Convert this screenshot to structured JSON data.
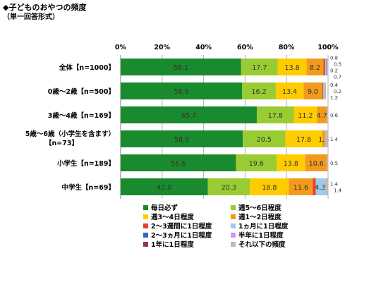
{
  "header": {
    "title": "◆子どものおやつの頻度",
    "subtitle": "（単一回答形式）"
  },
  "chart_data": {
    "type": "bar",
    "orientation": "horizontal-stacked-100",
    "title": "◆子どものおやつの頻度",
    "subtitle": "（単一回答形式）",
    "xlim": [
      0,
      100
    ],
    "xticks": [
      "0%",
      "20%",
      "40%",
      "60%",
      "80%",
      "100%"
    ],
    "grid": "vertical",
    "legend_position": "bottom",
    "categories": [
      "全体【n=1000】",
      "0歳～2歳【n=500】",
      "3歳～4歳【n=169】",
      [
        "5歳～6歳（小学生を含ます）",
        "【n=73】"
      ],
      "小学生【n=189】",
      "中学生【n=69】"
    ],
    "series": [
      {
        "name": "毎日必ず",
        "color": "#1a8a2e",
        "values": [
          58.1,
          58.6,
          65.7,
          58.9,
          55.6,
          42.0
        ],
        "labels": [
          "58.1",
          "58.6",
          "65.7",
          "58.9",
          "55.6",
          "42.0"
        ]
      },
      {
        "name": "週5～6日程度",
        "color": "#99cc33",
        "values": [
          17.7,
          16.2,
          17.8,
          20.5,
          19.6,
          20.3
        ],
        "labels": [
          "17.7",
          "16.2",
          "17.8",
          "20.5",
          "19.6",
          "20.3"
        ]
      },
      {
        "name": "週3～4日程度",
        "color": "#ffcc00",
        "values": [
          13.8,
          13.4,
          11.2,
          17.8,
          13.8,
          18.8
        ],
        "labels": [
          "13.8",
          "13.4",
          "11.2",
          "17.8",
          "13.8",
          "18.8"
        ]
      },
      {
        "name": "週1～2日程度",
        "color": "#f39a1c",
        "values": [
          8.2,
          9.0,
          4.7,
          1.4,
          10.6,
          11.6
        ],
        "labels": [
          "8.2",
          "9.0",
          "4.7",
          "1.4",
          "10.6",
          "11.6"
        ]
      },
      {
        "name": "2～3週間に1日程度",
        "color": "#e8402a",
        "values": [
          0.8,
          0.4,
          0,
          0,
          0,
          1.4
        ],
        "labels": [
          "0.8",
          "0.4",
          "",
          "",
          "",
          "1.4"
        ]
      },
      {
        "name": "1ヵ月に1日程度",
        "color": "#99ccee",
        "values": [
          0.5,
          0.2,
          0,
          0,
          0,
          4.3
        ],
        "labels": [
          "0.5",
          "0.2",
          "",
          "",
          "",
          "4.3"
        ]
      },
      {
        "name": "2～3ヵ月に1日程度",
        "color": "#3366cc",
        "values": [
          0.2,
          0,
          0,
          0,
          0,
          0
        ],
        "labels": [
          "0.2",
          "",
          "",
          "",
          "",
          ""
        ]
      },
      {
        "name": "半年に1日程度",
        "color": "#cc99ee",
        "values": [
          0,
          0,
          0,
          0,
          0,
          0
        ],
        "labels": [
          "",
          "",
          "",
          "",
          "",
          ""
        ]
      },
      {
        "name": "1年に1日程度",
        "color": "#993355",
        "values": [
          0,
          0,
          0,
          0,
          0,
          0
        ],
        "labels": [
          "",
          "",
          "",
          "",
          "",
          ""
        ]
      },
      {
        "name": "それ以下の頻度",
        "color": "#bbbbbb",
        "values": [
          0.7,
          1.2,
          0.6,
          1.4,
          0.5,
          1.4
        ],
        "labels": [
          "0.7",
          "1.2",
          "0.6",
          "1.4",
          "0.5",
          "1.4"
        ]
      }
    ]
  }
}
